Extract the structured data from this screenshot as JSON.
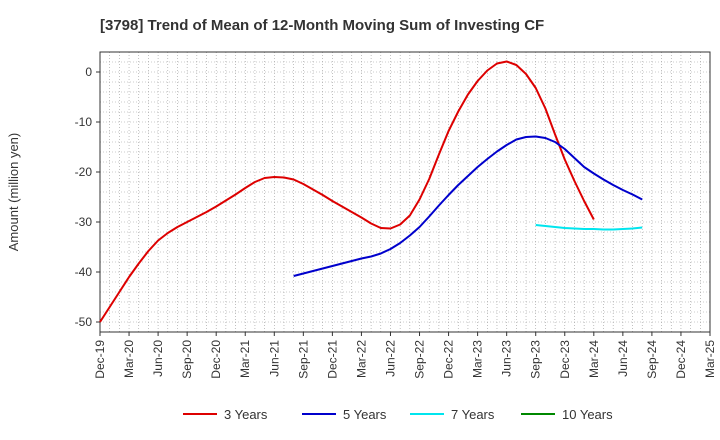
{
  "chart_data": {
    "type": "line",
    "title": "[3798]  Trend of Mean of 12-Month Moving Sum of Investing CF",
    "xlabel": "",
    "ylabel": "Amount (million yen)",
    "ylim": [
      -52,
      4
    ],
    "yticks": [
      0,
      -10,
      -20,
      -30,
      -40,
      -50
    ],
    "ytick_labels": [
      "0",
      "-10",
      "-20",
      "-30",
      "-40",
      "-50"
    ],
    "x_range": [
      0,
      63
    ],
    "xticks": [
      0,
      3,
      6,
      9,
      12,
      15,
      18,
      21,
      24,
      27,
      30,
      33,
      36,
      39,
      42,
      45,
      48,
      51,
      54,
      57,
      60,
      63
    ],
    "xtick_labels": [
      "Dec-19",
      "Mar-20",
      "Jun-20",
      "Sep-20",
      "Dec-20",
      "Mar-21",
      "Jun-21",
      "Sep-21",
      "Dec-21",
      "Mar-22",
      "Jun-22",
      "Sep-22",
      "Dec-22",
      "Mar-23",
      "Jun-23",
      "Sep-23",
      "Dec-23",
      "Mar-24",
      "Jun-24",
      "Sep-24",
      "Dec-24",
      "Mar-25"
    ],
    "grid": true,
    "legend_position": "bottom",
    "series": [
      {
        "name": "3 Years",
        "color": "#dd0000",
        "x": [
          0,
          1,
          2,
          3,
          4,
          5,
          6,
          7,
          8,
          9,
          10,
          11,
          12,
          13,
          14,
          15,
          16,
          17,
          18,
          19,
          20,
          21,
          22,
          23,
          24,
          25,
          26,
          27,
          28,
          29,
          30,
          31,
          32,
          33,
          34,
          35,
          36,
          37,
          38,
          39,
          40,
          41,
          42,
          43,
          44,
          45,
          46,
          47,
          48,
          49,
          50,
          51
        ],
        "values": [
          -50,
          -47,
          -44,
          -41,
          -38.3,
          -35.8,
          -33.7,
          -32.2,
          -31,
          -30,
          -29,
          -28,
          -26.9,
          -25.7,
          -24.5,
          -23.2,
          -22,
          -21.2,
          -21,
          -21.1,
          -21.5,
          -22.4,
          -23.5,
          -24.6,
          -25.8,
          -26.9,
          -28,
          -29.1,
          -30.3,
          -31.2,
          -31.3,
          -30.5,
          -28.7,
          -25.5,
          -21.4,
          -16.5,
          -11.8,
          -7.9,
          -4.5,
          -1.8,
          0.3,
          1.7,
          2.1,
          1.4,
          -0.4,
          -3.2,
          -7.3,
          -12.5,
          -17.5,
          -21.8,
          -25.8,
          -29.5
        ]
      },
      {
        "name": "5 Years",
        "color": "#0000cc",
        "x": [
          20,
          21,
          22,
          23,
          24,
          25,
          26,
          27,
          28,
          29,
          30,
          31,
          32,
          33,
          34,
          35,
          36,
          37,
          38,
          39,
          40,
          41,
          42,
          43,
          44,
          45,
          46,
          47,
          48,
          49,
          50,
          51,
          52,
          53,
          54,
          55,
          56
        ],
        "values": [
          -40.8,
          -40.3,
          -39.8,
          -39.3,
          -38.8,
          -38.3,
          -37.8,
          -37.3,
          -36.9,
          -36.3,
          -35.4,
          -34.2,
          -32.7,
          -31,
          -28.9,
          -26.7,
          -24.6,
          -22.6,
          -20.8,
          -19,
          -17.4,
          -15.9,
          -14.6,
          -13.5,
          -13,
          -12.9,
          -13.2,
          -14,
          -15.4,
          -17.2,
          -19,
          -20.3,
          -21.5,
          -22.6,
          -23.6,
          -24.5,
          -25.5
        ]
      },
      {
        "name": "7 Years",
        "color": "#00e5ee",
        "x": [
          45,
          46,
          47,
          48,
          49,
          50,
          51,
          52,
          53,
          54,
          55,
          56
        ],
        "values": [
          -30.6,
          -30.8,
          -31,
          -31.2,
          -31.3,
          -31.4,
          -31.4,
          -31.5,
          -31.5,
          -31.4,
          -31.3,
          -31.1
        ]
      },
      {
        "name": "10 Years",
        "color": "#008800",
        "x": [],
        "values": []
      }
    ]
  }
}
